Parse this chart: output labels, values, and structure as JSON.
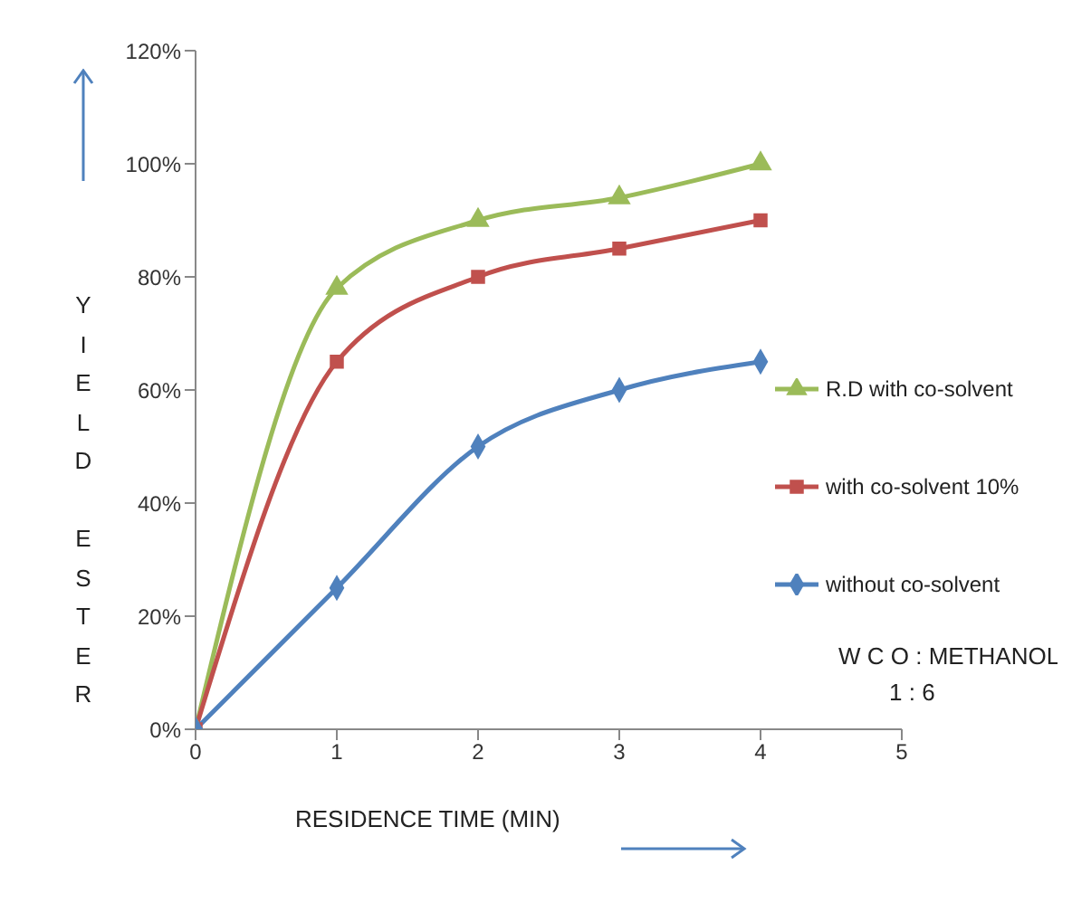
{
  "chart_data": {
    "type": "line",
    "xlabel": "RESIDENCE TIME (MIN)",
    "ylabel": "YIELD ESTER",
    "x": [
      0,
      1,
      2,
      3,
      4
    ],
    "xlim": [
      0,
      5
    ],
    "xticks": [
      0,
      1,
      2,
      3,
      4,
      5
    ],
    "ylim": [
      0,
      120
    ],
    "yticks": [
      {
        "value": 0,
        "label": "0%"
      },
      {
        "value": 20,
        "label": "20%"
      },
      {
        "value": 40,
        "label": "40%"
      },
      {
        "value": 60,
        "label": "60%"
      },
      {
        "value": 80,
        "label": "80%"
      },
      {
        "value": 100,
        "label": "100%"
      },
      {
        "value": 120,
        "label": "120%"
      }
    ],
    "legend": "right",
    "series": [
      {
        "name": "R.D with co-solvent",
        "color": "#9bbb59",
        "marker": "triangle",
        "values": [
          0,
          78,
          90,
          94,
          100
        ]
      },
      {
        "name": "with co-solvent 10%",
        "color": "#c0504d",
        "marker": "square",
        "values": [
          0,
          65,
          80,
          85,
          90
        ]
      },
      {
        "name": "without co-solvent",
        "color": "#4f81bd",
        "marker": "diamond",
        "values": [
          0,
          25,
          50,
          60,
          65
        ]
      }
    ],
    "annotations": [
      "W C O : METHANOL\n1 : 6"
    ]
  }
}
